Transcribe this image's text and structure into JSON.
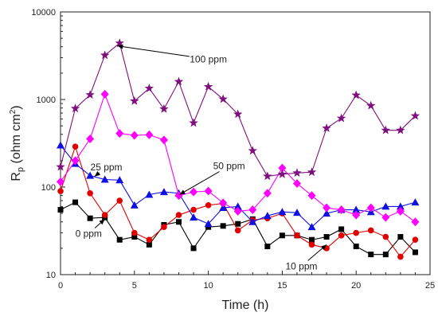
{
  "chart_data": {
    "type": "line",
    "title": "",
    "xlabel": "Time (h)",
    "ylabel_main": "R",
    "ylabel_sub": "p",
    "ylabel_unit_prefix": " (ohm cm",
    "ylabel_unit_sup": "2",
    "ylabel_unit_suffix": ")",
    "xlim": [
      0,
      25
    ],
    "ylim": [
      10,
      10000
    ],
    "yscale": "log",
    "xticks": [
      0,
      5,
      10,
      15,
      20,
      25
    ],
    "xtick_labels": [
      "0",
      "5",
      "10",
      "15",
      "20",
      "25"
    ],
    "yticks": [
      10,
      100,
      1000,
      10000
    ],
    "ytick_labels": [
      "10",
      "100",
      "1000",
      "10000"
    ],
    "grid": false,
    "x": [
      0,
      1,
      2,
      3,
      4,
      5,
      6,
      7,
      8,
      9,
      10,
      11,
      12,
      13,
      14,
      15,
      16,
      17,
      18,
      19,
      20,
      21,
      22,
      23,
      24
    ],
    "series": [
      {
        "color": "#000000",
        "marker": "square",
        "values": [
          55,
          67,
          44,
          45,
          25,
          27,
          22,
          37,
          40,
          20,
          35,
          36,
          38,
          43,
          21,
          28,
          28,
          25,
          27,
          33,
          21,
          17,
          17,
          27,
          18
        ]
      },
      {
        "color": "#e00000",
        "marker": "circle",
        "values": [
          90,
          290,
          85,
          48,
          70,
          30,
          25,
          35,
          48,
          55,
          62,
          65,
          32,
          42,
          44,
          50,
          28,
          22,
          20,
          28,
          30,
          32,
          27,
          16,
          25
        ]
      },
      {
        "color": "#1010e0",
        "marker": "triangle",
        "values": [
          300,
          185,
          135,
          122,
          120,
          62,
          82,
          88,
          85,
          45,
          38,
          58,
          60,
          40,
          47,
          52,
          51,
          35,
          50,
          55,
          55,
          52,
          60,
          60,
          67
        ]
      },
      {
        "color": "#ff00ff",
        "marker": "diamond",
        "values": [
          115,
          200,
          355,
          1150,
          410,
          390,
          395,
          345,
          80,
          88,
          90,
          66,
          53,
          55,
          85,
          165,
          110,
          80,
          58,
          55,
          48,
          58,
          45,
          53,
          40
        ]
      },
      {
        "color": "#7f0f7f",
        "marker": "star",
        "values": [
          170,
          790,
          1130,
          3200,
          4400,
          960,
          1340,
          780,
          1600,
          540,
          1400,
          1010,
          680,
          260,
          133,
          140,
          145,
          148,
          470,
          610,
          1120,
          850,
          445,
          445,
          650
        ]
      }
    ],
    "annotations": [
      {
        "text": "100 ppm",
        "x": 10,
        "y": 2650,
        "arrow_to": [
          3.85,
          4100
        ]
      },
      {
        "text": "50 ppm",
        "x": 11.4,
        "y": 160,
        "arrow_to": [
          8.05,
          82
        ]
      },
      {
        "text": "25 ppm",
        "x": 3.1,
        "y": 155,
        "arrow_to": [
          2.3,
          132
        ]
      },
      {
        "text": "0 ppm",
        "x": 1.9,
        "y": 27,
        "arrow_to": [
          3.0,
          43
        ]
      },
      {
        "text": "10 ppm",
        "x": 16.3,
        "y": 11.5,
        "arrow_to": [
          18.0,
          22
        ]
      }
    ]
  }
}
